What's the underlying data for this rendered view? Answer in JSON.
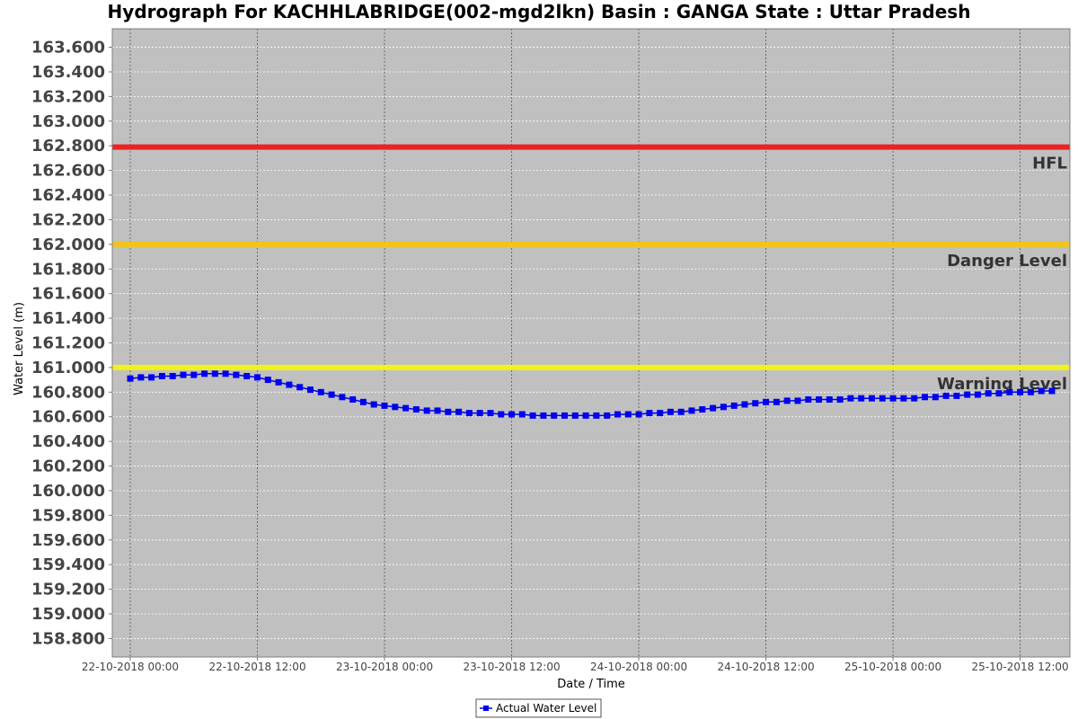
{
  "chart_data": {
    "type": "line",
    "title": "Hydrograph For KACHHLABRIDGE(002-mgd2lkn) Basin : GANGA State : Uttar Pradesh",
    "xlabel": "Date / Time",
    "ylabel": "Water Level (m)",
    "x_range": [
      "22-10-2018 00:00",
      "25-10-2018 15:00"
    ],
    "ylim": [
      158.65,
      163.75
    ],
    "y_ticks": [
      "158.800",
      "159.000",
      "159.200",
      "159.400",
      "159.600",
      "159.800",
      "160.000",
      "160.200",
      "160.400",
      "160.600",
      "160.800",
      "161.000",
      "161.200",
      "161.400",
      "161.600",
      "161.800",
      "162.000",
      "162.200",
      "162.400",
      "162.600",
      "162.800",
      "163.000",
      "163.200",
      "163.400",
      "163.600"
    ],
    "x_ticks": [
      "22-10-2018 00:00",
      "22-10-2018 12:00",
      "23-10-2018 00:00",
      "23-10-2018 12:00",
      "24-10-2018 00:00",
      "24-10-2018 12:00",
      "25-10-2018 00:00",
      "25-10-2018 12:00"
    ],
    "grid": true,
    "legend_position": "bottom-center",
    "series": [
      {
        "name": "Actual Water Level",
        "color": "#0000ee",
        "marker": "square",
        "x": [
          "22-10-2018 00:00",
          "22-10-2018 01:00",
          "22-10-2018 02:00",
          "22-10-2018 03:00",
          "22-10-2018 04:00",
          "22-10-2018 05:00",
          "22-10-2018 06:00",
          "22-10-2018 07:00",
          "22-10-2018 08:00",
          "22-10-2018 09:00",
          "22-10-2018 10:00",
          "22-10-2018 11:00",
          "22-10-2018 12:00",
          "22-10-2018 13:00",
          "22-10-2018 14:00",
          "22-10-2018 15:00",
          "22-10-2018 16:00",
          "22-10-2018 17:00",
          "22-10-2018 18:00",
          "22-10-2018 19:00",
          "22-10-2018 20:00",
          "22-10-2018 21:00",
          "22-10-2018 22:00",
          "22-10-2018 23:00",
          "23-10-2018 00:00",
          "23-10-2018 01:00",
          "23-10-2018 02:00",
          "23-10-2018 03:00",
          "23-10-2018 04:00",
          "23-10-2018 05:00",
          "23-10-2018 06:00",
          "23-10-2018 07:00",
          "23-10-2018 08:00",
          "23-10-2018 09:00",
          "23-10-2018 10:00",
          "23-10-2018 11:00",
          "23-10-2018 12:00",
          "23-10-2018 13:00",
          "23-10-2018 14:00",
          "23-10-2018 15:00",
          "23-10-2018 16:00",
          "23-10-2018 17:00",
          "23-10-2018 18:00",
          "23-10-2018 19:00",
          "23-10-2018 20:00",
          "23-10-2018 21:00",
          "23-10-2018 22:00",
          "23-10-2018 23:00",
          "24-10-2018 00:00",
          "24-10-2018 01:00",
          "24-10-2018 02:00",
          "24-10-2018 03:00",
          "24-10-2018 04:00",
          "24-10-2018 05:00",
          "24-10-2018 06:00",
          "24-10-2018 07:00",
          "24-10-2018 08:00",
          "24-10-2018 09:00",
          "24-10-2018 10:00",
          "24-10-2018 11:00",
          "24-10-2018 12:00",
          "24-10-2018 13:00",
          "24-10-2018 14:00",
          "24-10-2018 15:00",
          "24-10-2018 16:00",
          "24-10-2018 17:00",
          "24-10-2018 18:00",
          "24-10-2018 19:00",
          "24-10-2018 20:00",
          "24-10-2018 21:00",
          "24-10-2018 22:00",
          "24-10-2018 23:00",
          "25-10-2018 00:00",
          "25-10-2018 01:00",
          "25-10-2018 02:00",
          "25-10-2018 03:00",
          "25-10-2018 04:00",
          "25-10-2018 05:00",
          "25-10-2018 06:00",
          "25-10-2018 07:00",
          "25-10-2018 08:00",
          "25-10-2018 09:00",
          "25-10-2018 10:00",
          "25-10-2018 11:00",
          "25-10-2018 12:00",
          "25-10-2018 13:00",
          "25-10-2018 14:00",
          "25-10-2018 15:00"
        ],
        "y": [
          160.91,
          160.92,
          160.92,
          160.93,
          160.93,
          160.94,
          160.94,
          160.95,
          160.95,
          160.95,
          160.94,
          160.93,
          160.92,
          160.9,
          160.88,
          160.86,
          160.84,
          160.82,
          160.8,
          160.78,
          160.76,
          160.74,
          160.72,
          160.7,
          160.69,
          160.68,
          160.67,
          160.66,
          160.65,
          160.65,
          160.64,
          160.64,
          160.63,
          160.63,
          160.63,
          160.62,
          160.62,
          160.62,
          160.61,
          160.61,
          160.61,
          160.61,
          160.61,
          160.61,
          160.61,
          160.61,
          160.62,
          160.62,
          160.62,
          160.63,
          160.63,
          160.64,
          160.64,
          160.65,
          160.66,
          160.67,
          160.68,
          160.69,
          160.7,
          160.71,
          160.72,
          160.72,
          160.73,
          160.73,
          160.74,
          160.74,
          160.74,
          160.74,
          160.75,
          160.75,
          160.75,
          160.75,
          160.75,
          160.75,
          160.75,
          160.76,
          160.76,
          160.77,
          160.77,
          160.78,
          160.78,
          160.79,
          160.79,
          160.8,
          160.8,
          160.8,
          160.81,
          160.81
        ]
      }
    ],
    "reference_lines": [
      {
        "label": "HFL",
        "value": 162.79,
        "color": "#ee2222"
      },
      {
        "label": "Danger Level",
        "value": 162.0,
        "color": "#f2c31c"
      },
      {
        "label": "Warning Level",
        "value": 161.0,
        "color": "#f2f21c"
      }
    ],
    "colors": {
      "plot_background": "#c0c0c0",
      "grid": "#ffffff",
      "plot_border": "#808080"
    }
  }
}
